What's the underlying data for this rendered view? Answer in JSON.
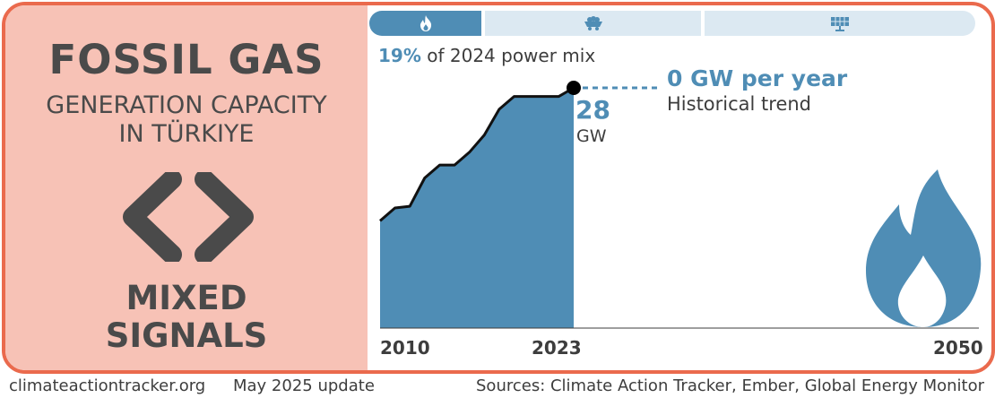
{
  "panel": {
    "title": "FOSSIL GAS",
    "subtitle_line1": "GENERATION CAPACITY",
    "subtitle_line2": "IN TÜRKIYE",
    "status_line1": "MIXED",
    "status_line2": "SIGNALS",
    "status_icon": "chevrons-diverging-icon"
  },
  "tabs": [
    {
      "icon": "flame-icon",
      "active": true
    },
    {
      "icon": "coal-cart-icon",
      "active": false
    },
    {
      "icon": "solar-panel-icon",
      "active": false
    }
  ],
  "share": {
    "value": "19%",
    "text": "of 2024 power mix"
  },
  "annotation": {
    "rate": "0 GW per year",
    "label": "Historical trend"
  },
  "capacity": {
    "value": "28",
    "unit": "GW"
  },
  "chart_data": {
    "type": "area",
    "title": "Fossil gas generation capacity in Türkiye",
    "unit": "GW",
    "x": [
      2010,
      2011,
      2012,
      2013,
      2014,
      2015,
      2016,
      2017,
      2018,
      2019,
      2020,
      2021,
      2022,
      2023
    ],
    "values": [
      12.5,
      14.0,
      14.2,
      17.5,
      19.0,
      19.0,
      20.5,
      22.5,
      25.5,
      27.0,
      27.0,
      27.0,
      27.0,
      28.0
    ],
    "xlim": [
      2010,
      2050
    ],
    "ylim": [
      0,
      28
    ],
    "xticks": [
      "2010",
      "2023",
      "2050"
    ],
    "trend": {
      "from": 2023,
      "to": 2030,
      "value": 28,
      "style": "dashed"
    }
  },
  "colors": {
    "accent": "#4f8db5",
    "border": "#ea6a4d",
    "panel": "#f7c2b6",
    "text": "#3d3d3d",
    "tab_inactive": "#dce9f2"
  },
  "footer": {
    "site": "climateactiontracker.org",
    "update": "May 2025 update",
    "sources": "Sources: Climate Action Tracker, Ember, Global Energy Monitor"
  }
}
